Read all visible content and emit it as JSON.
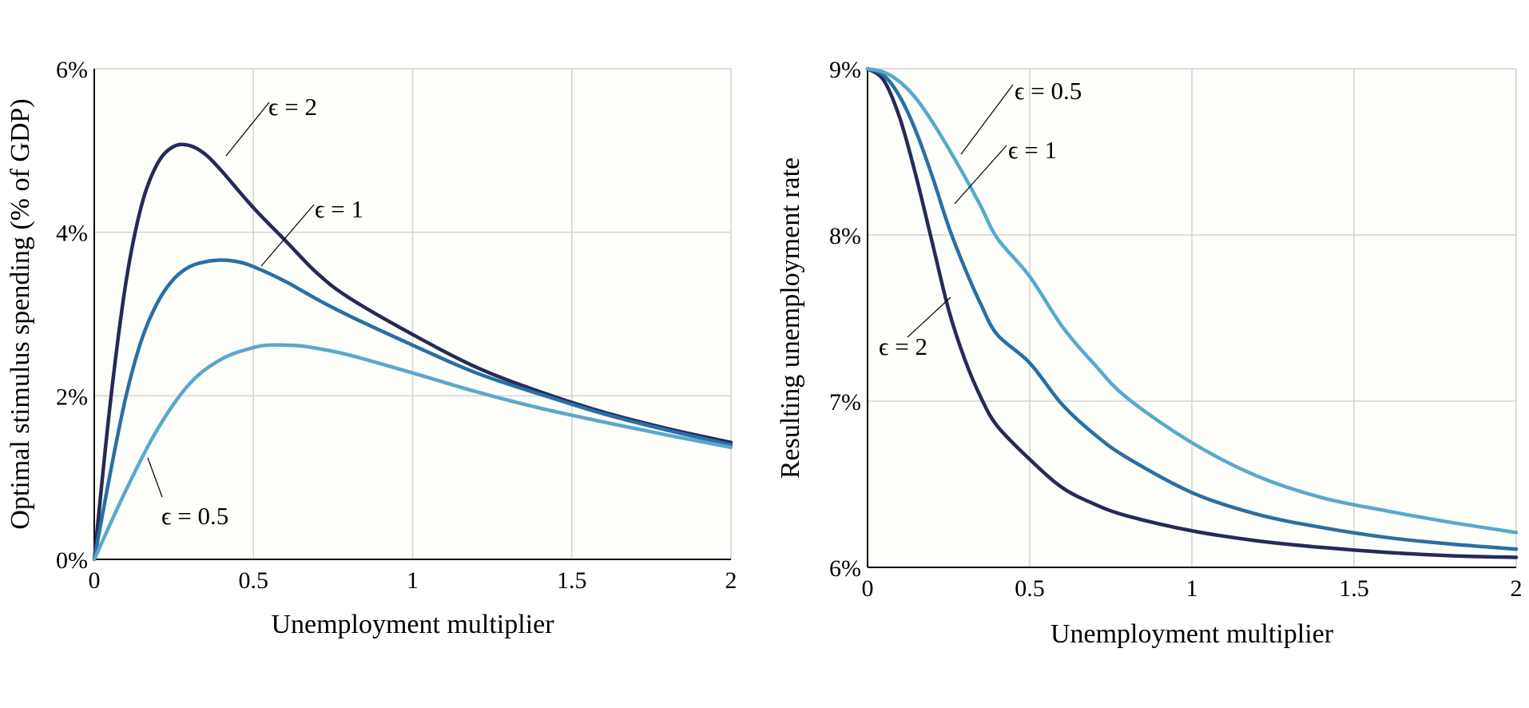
{
  "colors": {
    "eps_2": "#252a57",
    "eps_1": "#2a6ea6",
    "eps_0_5": "#5aa8cb",
    "plot_bg": "#fefefb",
    "grid": "#d2d2d2"
  },
  "chart_data": [
    {
      "type": "line",
      "xlabel": "Unemployment multiplier",
      "ylabel": "Optimal stimulus spending (% of GDP)",
      "xlim": [
        0,
        2
      ],
      "ylim": [
        0,
        6
      ],
      "xticks": [
        0,
        0.5,
        1,
        1.5,
        2
      ],
      "xtick_labels": [
        "0",
        "0.5",
        "1",
        "1.5",
        "2"
      ],
      "yticks": [
        0,
        2,
        4,
        6
      ],
      "ytick_labels": [
        "0%",
        "2%",
        "4%",
        "6%"
      ],
      "grid": true,
      "series": [
        {
          "name": "ϵ = 2",
          "color_key": "eps_2",
          "x": [
            0,
            0.05,
            0.1,
            0.15,
            0.2,
            0.25,
            0.3,
            0.35,
            0.4,
            0.5,
            0.6,
            0.7,
            0.8,
            1.0,
            1.2,
            1.4,
            1.6,
            1.8,
            2.0
          ],
          "y": [
            0,
            1.9,
            3.4,
            4.35,
            4.85,
            5.05,
            5.06,
            4.95,
            4.75,
            4.3,
            3.9,
            3.5,
            3.2,
            2.75,
            2.35,
            2.05,
            1.8,
            1.6,
            1.43
          ]
        },
        {
          "name": "ϵ = 1",
          "color_key": "eps_1",
          "x": [
            0,
            0.05,
            0.1,
            0.15,
            0.2,
            0.25,
            0.3,
            0.35,
            0.4,
            0.45,
            0.5,
            0.6,
            0.7,
            0.8,
            1.0,
            1.2,
            1.4,
            1.6,
            1.8,
            2.0
          ],
          "y": [
            0,
            1.05,
            2.0,
            2.7,
            3.15,
            3.43,
            3.58,
            3.64,
            3.66,
            3.64,
            3.58,
            3.4,
            3.18,
            2.98,
            2.62,
            2.28,
            2.02,
            1.78,
            1.58,
            1.4
          ]
        },
        {
          "name": "ϵ = 0.5",
          "color_key": "eps_0_5",
          "x": [
            0,
            0.1,
            0.2,
            0.3,
            0.4,
            0.5,
            0.55,
            0.6,
            0.65,
            0.7,
            0.8,
            1.0,
            1.2,
            1.4,
            1.6,
            1.8,
            2.0
          ],
          "y": [
            0,
            0.85,
            1.6,
            2.15,
            2.45,
            2.59,
            2.62,
            2.62,
            2.61,
            2.58,
            2.5,
            2.28,
            2.05,
            1.85,
            1.68,
            1.52,
            1.37
          ]
        }
      ],
      "annotations": [
        {
          "text": "ϵ = 2",
          "series": "ϵ = 2"
        },
        {
          "text": "ϵ = 1",
          "series": "ϵ = 1"
        },
        {
          "text": "ϵ = 0.5",
          "series": "ϵ = 0.5"
        }
      ]
    },
    {
      "type": "line",
      "xlabel": "Unemployment multiplier",
      "ylabel": "Resulting unemployment rate",
      "xlim": [
        0,
        2
      ],
      "ylim": [
        6,
        9
      ],
      "xticks": [
        0,
        0.5,
        1,
        1.5,
        2
      ],
      "xtick_labels": [
        "0",
        "0.5",
        "1",
        "1.5",
        "2"
      ],
      "yticks": [
        6,
        7,
        8,
        9
      ],
      "ytick_labels": [
        "6%",
        "7%",
        "8%",
        "9%"
      ],
      "grid": true,
      "series": [
        {
          "name": "ϵ = 2",
          "color_key": "eps_2",
          "x": [
            0,
            0.05,
            0.1,
            0.15,
            0.2,
            0.25,
            0.3,
            0.35,
            0.4,
            0.5,
            0.6,
            0.7,
            0.8,
            1.0,
            1.2,
            1.4,
            1.6,
            1.8,
            2.0
          ],
          "y": [
            9.0,
            8.93,
            8.7,
            8.35,
            7.95,
            7.55,
            7.25,
            7.02,
            6.85,
            6.65,
            6.48,
            6.38,
            6.31,
            6.22,
            6.16,
            6.12,
            6.09,
            6.07,
            6.06
          ]
        },
        {
          "name": "ϵ = 1",
          "color_key": "eps_1",
          "x": [
            0,
            0.05,
            0.1,
            0.15,
            0.2,
            0.25,
            0.3,
            0.35,
            0.4,
            0.5,
            0.6,
            0.7,
            0.8,
            1.0,
            1.2,
            1.4,
            1.6,
            1.8,
            2.0
          ],
          "y": [
            9.0,
            8.96,
            8.83,
            8.62,
            8.35,
            8.05,
            7.8,
            7.58,
            7.4,
            7.23,
            6.98,
            6.8,
            6.66,
            6.45,
            6.32,
            6.24,
            6.18,
            6.14,
            6.11
          ]
        },
        {
          "name": "ϵ = 0.5",
          "color_key": "eps_0_5",
          "x": [
            0,
            0.05,
            0.1,
            0.15,
            0.2,
            0.25,
            0.3,
            0.35,
            0.4,
            0.5,
            0.6,
            0.7,
            0.8,
            1.0,
            1.2,
            1.4,
            1.6,
            1.8,
            2.0
          ],
          "y": [
            9.0,
            8.98,
            8.92,
            8.82,
            8.68,
            8.52,
            8.35,
            8.17,
            7.98,
            7.75,
            7.45,
            7.22,
            7.02,
            6.75,
            6.55,
            6.42,
            6.34,
            6.27,
            6.21
          ]
        }
      ],
      "annotations": [
        {
          "text": "ϵ = 0.5",
          "series": "ϵ = 0.5"
        },
        {
          "text": "ϵ = 1",
          "series": "ϵ = 1"
        },
        {
          "text": "ϵ = 2",
          "series": "ϵ = 2"
        }
      ]
    }
  ]
}
